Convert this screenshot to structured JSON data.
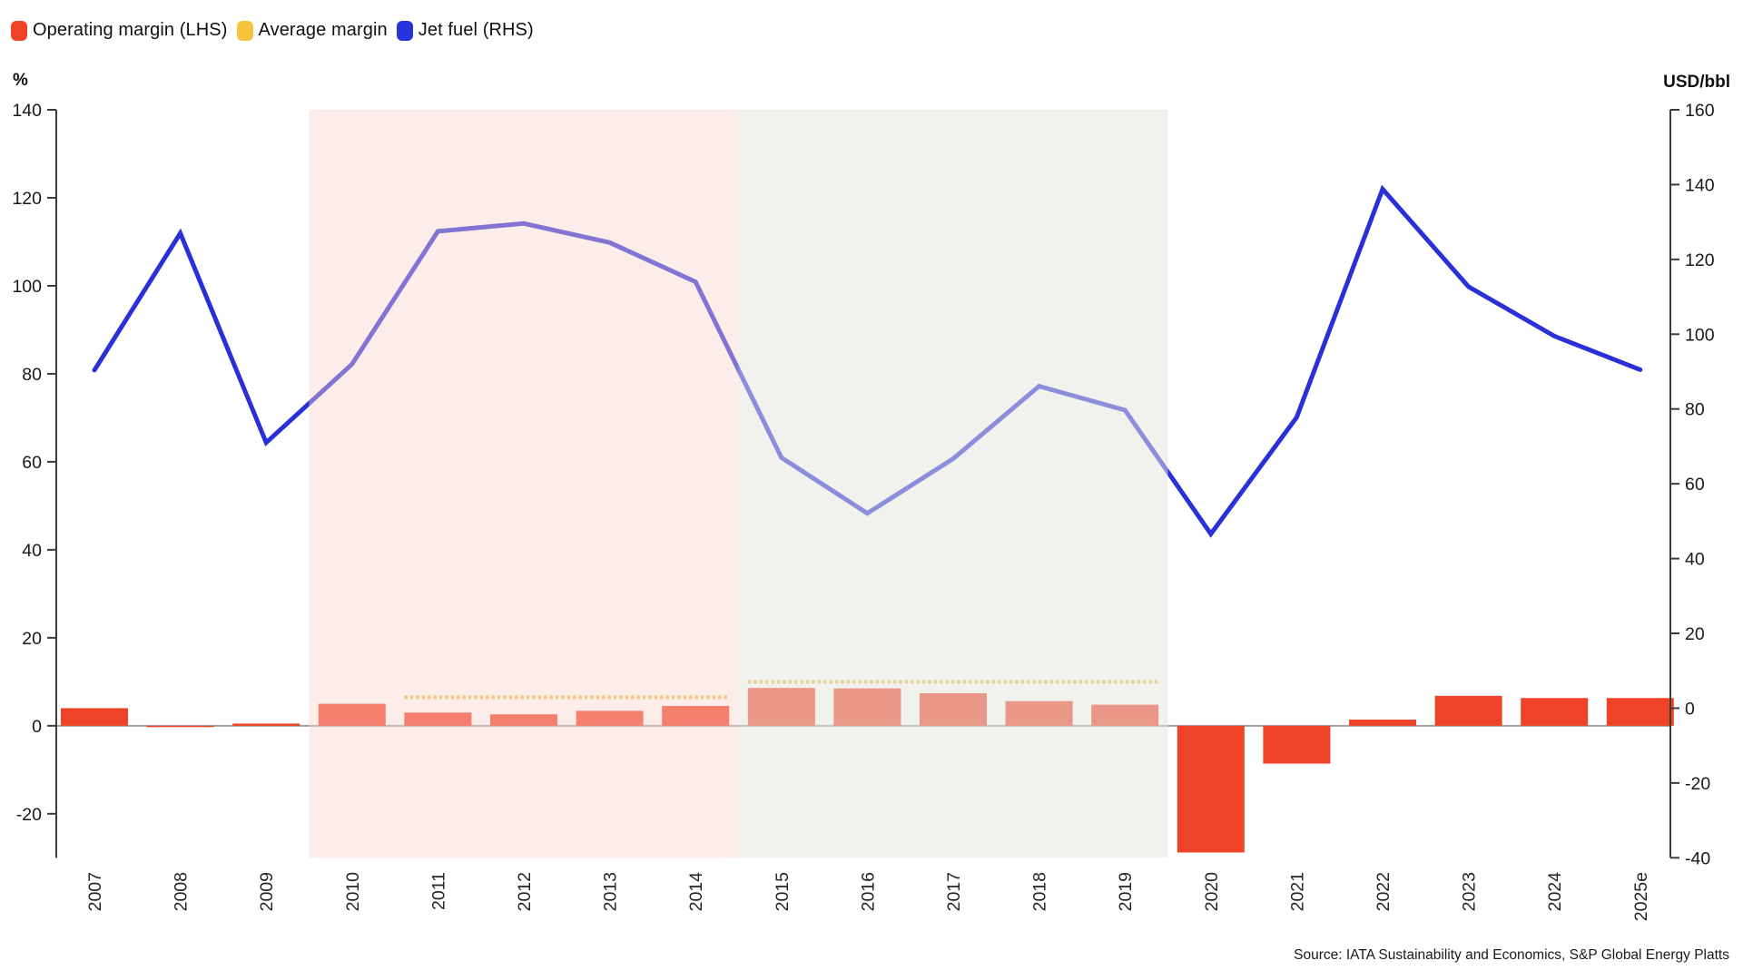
{
  "legend": {
    "items": [
      {
        "label": "Operating margin (LHS)",
        "color": "#ee4327"
      },
      {
        "label": "Average margin",
        "color": "#f5c43c"
      },
      {
        "label": "Jet fuel (RHS)",
        "color": "#2633df"
      }
    ]
  },
  "source": "Source: IATA Sustainability and Economics, S&P Global Energy Platts",
  "chart_data": {
    "type": "bar",
    "subtype": "dual-axis bar + line combo",
    "categories": [
      "2007",
      "2008",
      "2009",
      "2010",
      "2011",
      "2012",
      "2013",
      "2014",
      "2015",
      "2016",
      "2017",
      "2018",
      "2019",
      "2020",
      "2021",
      "2022",
      "2023",
      "2024",
      "2025e"
    ],
    "series": [
      {
        "name": "Operating margin (LHS)",
        "type": "bar",
        "axis": "left",
        "unit": "%",
        "color": "#ee4327",
        "values": [
          4.0,
          -0.3,
          0.5,
          5.0,
          3.0,
          2.6,
          3.4,
          4.5,
          8.6,
          8.5,
          7.4,
          5.6,
          4.8,
          -28.8,
          -8.6,
          1.4,
          6.8,
          6.3,
          6.3
        ]
      },
      {
        "name": "Average margin",
        "type": "dotted-segments",
        "axis": "left",
        "unit": "%",
        "color": "#edbd4a",
        "segments": [
          {
            "from": "2011",
            "to": "2014",
            "value": 6.5
          },
          {
            "from": "2015",
            "to": "2019",
            "value": 10.0
          }
        ]
      },
      {
        "name": "Jet fuel (RHS)",
        "type": "line",
        "axis": "right",
        "unit": "USD/bbl",
        "color": "#2a30d8",
        "values": [
          90.4,
          127.0,
          71.0,
          92.0,
          127.5,
          129.6,
          124.5,
          114.0,
          67.0,
          52.1,
          66.7,
          86.1,
          79.7,
          46.6,
          77.8,
          138.8,
          112.7,
          99.5,
          90.5
        ]
      }
    ],
    "left_axis": {
      "label": "%",
      "min": -30,
      "max": 140,
      "ticks": [
        -20,
        0,
        20,
        40,
        60,
        80,
        100,
        120,
        140
      ]
    },
    "right_axis": {
      "label": "USD/bbl",
      "min": -40,
      "max": 160,
      "ticks": [
        -40,
        -20,
        0,
        20,
        40,
        60,
        80,
        100,
        120,
        140,
        160
      ]
    },
    "shaded_periods": [
      {
        "from": "2010",
        "to": "2014",
        "overlay_color": "rgba(250,212,205,0.42)",
        "name": "high-fuel-era-pink"
      },
      {
        "from": "2015",
        "to": "2019",
        "overlay_color": "rgba(228,228,223,0.52)",
        "name": "low-fuel-era-gray"
      }
    ],
    "grid": false,
    "legend_position": "top-left",
    "baseline_color": "#a0a0a0",
    "axis_color": "#3c3c3c"
  }
}
